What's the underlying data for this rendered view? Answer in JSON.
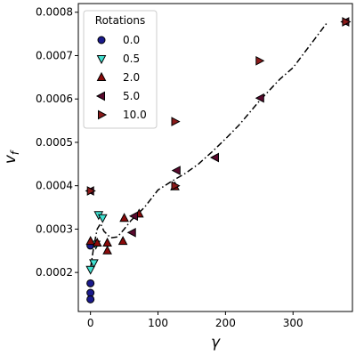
{
  "chart_data": {
    "type": "scatter",
    "xlabel": "γ",
    "ylabel_main": "v",
    "ylabel_sub": "f",
    "xlim": [
      -18,
      388
    ],
    "ylim": [
      0.00011,
      0.00082
    ],
    "x_ticks": [
      0,
      100,
      200,
      300
    ],
    "y_ticks": [
      0.0002,
      0.0003,
      0.0004,
      0.0005,
      0.0006,
      0.0007,
      0.0008
    ],
    "y_tick_labels": [
      "0.0002",
      "0.0003",
      "0.0004",
      "0.0005",
      "0.0006",
      "0.0007",
      "0.0008"
    ],
    "legend": {
      "title": "Rotations",
      "placement": "top-left"
    },
    "series": [
      {
        "name": "0.0",
        "marker": "circle",
        "color": "#1a1a8c",
        "points": [
          [
            0,
            0.000262
          ],
          [
            0,
            0.000175
          ],
          [
            0,
            0.000153
          ],
          [
            0,
            0.000138
          ]
        ]
      },
      {
        "name": "0.5",
        "marker": "triangle-down",
        "color": "#40e0d0",
        "points": [
          [
            0,
            0.000207
          ],
          [
            5,
            0.000222
          ],
          [
            8,
            0.000265
          ],
          [
            12,
            0.000333
          ],
          [
            18,
            0.000326
          ]
        ]
      },
      {
        "name": "2.0",
        "marker": "triangle-up",
        "color": "#8b0a0a",
        "points": [
          [
            0,
            0.000272
          ],
          [
            10,
            0.000268
          ],
          [
            25,
            0.000268
          ],
          [
            25,
            0.00025
          ],
          [
            48,
            0.000272
          ],
          [
            50,
            0.000325
          ],
          [
            72,
            0.000335
          ],
          [
            125,
            0.000398
          ]
        ]
      },
      {
        "name": "5.0",
        "marker": "triangle-left",
        "color": "#5a0a2e",
        "points": [
          [
            0,
            0.000388
          ],
          [
            62,
            0.000292
          ],
          [
            65,
            0.00033
          ],
          [
            128,
            0.000435
          ],
          [
            185,
            0.000465
          ],
          [
            252,
            0.000602
          ],
          [
            378,
            0.000778
          ]
        ]
      },
      {
        "name": "10.0",
        "marker": "triangle-right",
        "color": "#8b1a1a",
        "points": [
          [
            0,
            0.000388
          ],
          [
            125,
            0.000548
          ],
          [
            125,
            0.0004
          ],
          [
            250,
            0.000688
          ],
          [
            378,
            0.000778
          ]
        ]
      }
    ],
    "fit_line": {
      "style": "dashdot",
      "points": [
        [
          0,
          0.00021
        ],
        [
          5,
          0.00026
        ],
        [
          10,
          0.0003
        ],
        [
          15,
          0.000313
        ],
        [
          20,
          0.000295
        ],
        [
          30,
          0.00028
        ],
        [
          40,
          0.000282
        ],
        [
          50,
          0.0003
        ],
        [
          60,
          0.00032
        ],
        [
          80,
          0.00035
        ],
        [
          100,
          0.00039
        ],
        [
          120,
          0.00041
        ],
        [
          140,
          0.000428
        ],
        [
          160,
          0.00045
        ],
        [
          180,
          0.000478
        ],
        [
          200,
          0.000508
        ],
        [
          220,
          0.00054
        ],
        [
          250,
          0.000595
        ],
        [
          280,
          0.000645
        ],
        [
          300,
          0.000672
        ],
        [
          350,
          0.000775
        ]
      ]
    }
  }
}
